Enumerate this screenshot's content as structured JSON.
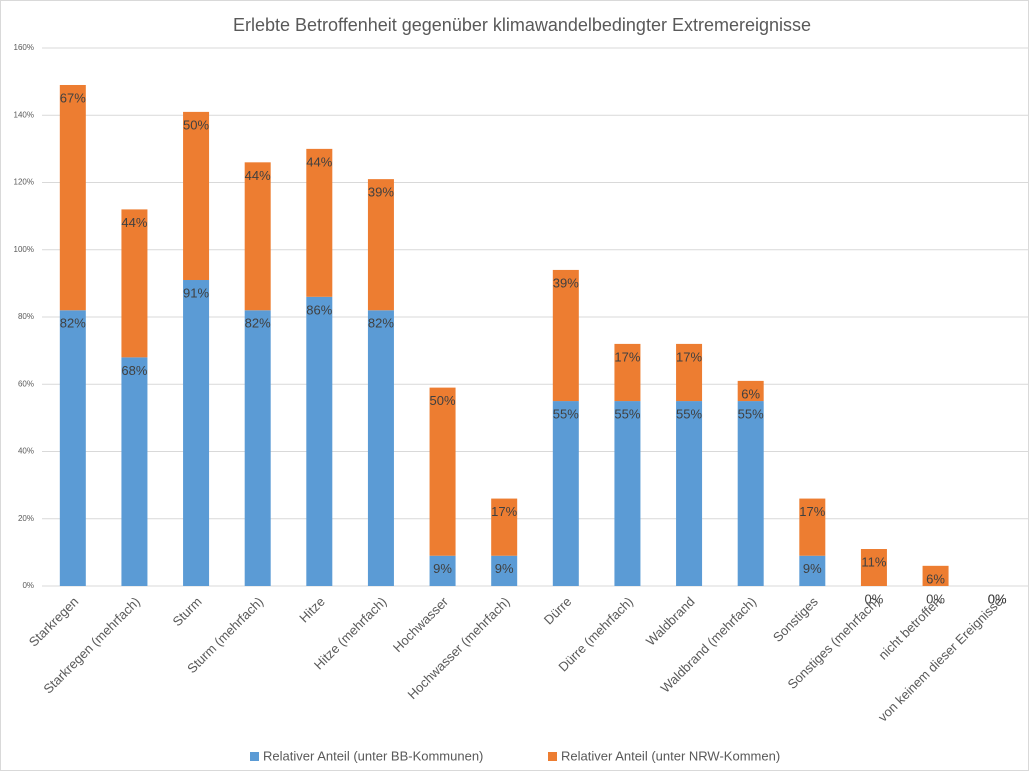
{
  "chart_data": {
    "type": "bar",
    "stacked": true,
    "title": "Erlebte Betroffenheit gegenüber klimawandelbedingter Extremereignisse",
    "categories": [
      "Starkregen",
      "Starkregen (mehrfach)",
      "Sturm",
      "Sturm (mehrfach)",
      "Hitze",
      "Hitze (mehrfach)",
      "Hochwasser",
      "Hochwasser (mehrfach)",
      "Dürre",
      "Dürre (mehrfach)",
      "Waldbrand",
      "Waldbrand (mehrfach)",
      "Sonstiges",
      "Sonstiges (mehrfach)",
      "nicht betroffen",
      "von keinem dieser Ereignisse"
    ],
    "series": [
      {
        "name": "Relativer Anteil (unter BB-Kommunen)",
        "color": "#5b9bd5",
        "values": [
          82,
          68,
          91,
          82,
          86,
          82,
          9,
          9,
          55,
          55,
          55,
          55,
          9,
          0,
          0,
          0
        ],
        "value_labels": [
          "82%",
          "68%",
          "91%",
          "82%",
          "86%",
          "82%",
          "9%",
          "9%",
          "55%",
          "55%",
          "55%",
          "55%",
          "9%",
          "0%",
          "0%",
          "0%"
        ]
      },
      {
        "name": "Relativer Anteil (unter NRW-Kommen)",
        "color": "#ed7d31",
        "values": [
          67,
          44,
          50,
          44,
          44,
          39,
          50,
          17,
          39,
          17,
          17,
          6,
          17,
          11,
          6,
          0
        ],
        "value_labels": [
          "67%",
          "44%",
          "50%",
          "44%",
          "44%",
          "39%",
          "50%",
          "17%",
          "39%",
          "17%",
          "17%",
          "6%",
          "17%",
          "11%",
          "6%",
          "0%"
        ]
      }
    ],
    "ylim": [
      0,
      160
    ],
    "yticks": [
      {
        "value": 0,
        "label": "0%"
      },
      {
        "value": 20,
        "label": "20%"
      },
      {
        "value": 40,
        "label": "40%"
      },
      {
        "value": 60,
        "label": "60%"
      },
      {
        "value": 80,
        "label": "80%"
      },
      {
        "value": 100,
        "label": "100%"
      },
      {
        "value": 120,
        "label": "120%"
      },
      {
        "value": 140,
        "label": "140%"
      },
      {
        "value": 160,
        "label": "160%"
      }
    ],
    "grid": true,
    "legend": "bottom"
  }
}
